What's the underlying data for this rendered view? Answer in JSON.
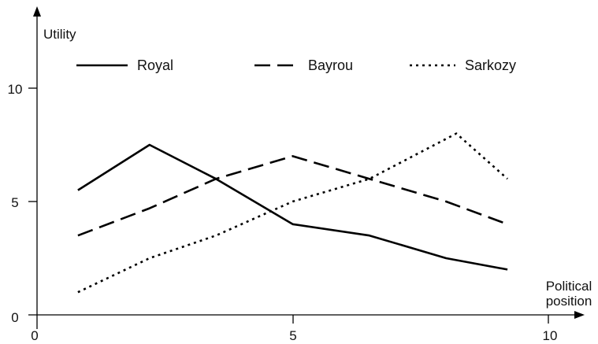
{
  "chart_data": {
    "type": "line",
    "x_ticks": [
      "0",
      "5",
      "10"
    ],
    "y_ticks": [
      "0",
      "5",
      "10"
    ],
    "xlabel": [
      "Political",
      "position"
    ],
    "ylabel": "Utility",
    "xlim": [
      0,
      10
    ],
    "ylim": [
      0,
      10
    ],
    "grid": false,
    "legend_position": "top",
    "series": [
      {
        "name": "Royal",
        "line_style": "solid",
        "x": [
          0.8,
          2.2,
          3.5,
          5.0,
          6.5,
          8.0,
          9.2
        ],
        "y": [
          5.5,
          7.5,
          6.0,
          4.0,
          3.5,
          2.5,
          2.0
        ]
      },
      {
        "name": "Bayrou",
        "line_style": "dashed",
        "x": [
          0.8,
          2.2,
          3.5,
          5.0,
          6.5,
          8.0,
          9.2
        ],
        "y": [
          3.5,
          4.7,
          6.0,
          7.0,
          6.0,
          5.0,
          4.0
        ]
      },
      {
        "name": "Sarkozy",
        "line_style": "dotted",
        "x": [
          0.8,
          2.2,
          3.5,
          5.0,
          6.5,
          8.2,
          9.2
        ],
        "y": [
          1.0,
          2.5,
          3.5,
          5.0,
          6.0,
          8.0,
          6.0
        ]
      }
    ]
  }
}
